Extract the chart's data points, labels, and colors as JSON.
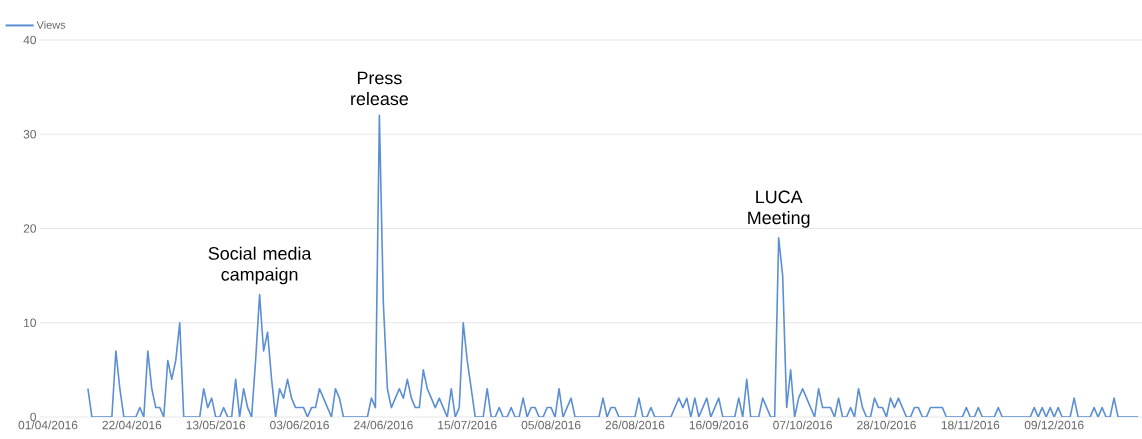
{
  "chart_data": {
    "type": "line",
    "x": [
      "2016-04-11",
      "2016-04-12",
      "2016-04-17",
      "2016-04-18",
      "2016-04-19",
      "2016-04-20",
      "2016-04-23",
      "2016-04-24",
      "2016-04-25",
      "2016-04-26",
      "2016-04-27",
      "2016-04-28",
      "2016-04-29",
      "2016-04-30",
      "2016-05-01",
      "2016-05-02",
      "2016-05-03",
      "2016-05-04",
      "2016-05-05",
      "2016-05-09",
      "2016-05-10",
      "2016-05-11",
      "2016-05-12",
      "2016-05-13",
      "2016-05-14",
      "2016-05-15",
      "2016-05-16",
      "2016-05-17",
      "2016-05-18",
      "2016-05-19",
      "2016-05-20",
      "2016-05-21",
      "2016-05-22",
      "2016-05-23",
      "2016-05-24",
      "2016-05-25",
      "2016-05-26",
      "2016-05-27",
      "2016-05-28",
      "2016-05-29",
      "2016-05-30",
      "2016-05-31",
      "2016-06-01",
      "2016-06-02",
      "2016-06-03",
      "2016-06-04",
      "2016-06-05",
      "2016-06-06",
      "2016-06-07",
      "2016-06-08",
      "2016-06-09",
      "2016-06-10",
      "2016-06-11",
      "2016-06-12",
      "2016-06-13",
      "2016-06-14",
      "2016-06-20",
      "2016-06-21",
      "2016-06-22",
      "2016-06-23",
      "2016-06-24",
      "2016-06-25",
      "2016-06-26",
      "2016-06-27",
      "2016-06-28",
      "2016-06-29",
      "2016-06-30",
      "2016-07-01",
      "2016-07-02",
      "2016-07-03",
      "2016-07-04",
      "2016-07-05",
      "2016-07-06",
      "2016-07-07",
      "2016-07-08",
      "2016-07-09",
      "2016-07-10",
      "2016-07-11",
      "2016-07-12",
      "2016-07-13",
      "2016-07-14",
      "2016-07-15",
      "2016-07-16",
      "2016-07-17",
      "2016-07-19",
      "2016-07-20",
      "2016-07-21",
      "2016-07-22",
      "2016-07-23",
      "2016-07-24",
      "2016-07-25",
      "2016-07-26",
      "2016-07-27",
      "2016-07-28",
      "2016-07-29",
      "2016-07-30",
      "2016-07-31",
      "2016-08-01",
      "2016-08-02",
      "2016-08-03",
      "2016-08-04",
      "2016-08-05",
      "2016-08-06",
      "2016-08-07",
      "2016-08-08",
      "2016-08-10",
      "2016-08-11",
      "2016-08-17",
      "2016-08-18",
      "2016-08-19",
      "2016-08-20",
      "2016-08-21",
      "2016-08-22",
      "2016-08-26",
      "2016-08-27",
      "2016-08-28",
      "2016-08-29",
      "2016-08-30",
      "2016-08-31",
      "2016-09-04",
      "2016-09-05",
      "2016-09-06",
      "2016-09-07",
      "2016-09-08",
      "2016-09-09",
      "2016-09-10",
      "2016-09-11",
      "2016-09-12",
      "2016-09-13",
      "2016-09-14",
      "2016-09-15",
      "2016-09-16",
      "2016-09-17",
      "2016-09-20",
      "2016-09-21",
      "2016-09-22",
      "2016-09-23",
      "2016-09-24",
      "2016-09-26",
      "2016-09-27",
      "2016-09-28",
      "2016-09-29",
      "2016-09-30",
      "2016-10-01",
      "2016-10-02",
      "2016-10-03",
      "2016-10-04",
      "2016-10-05",
      "2016-10-06",
      "2016-10-07",
      "2016-10-08",
      "2016-10-09",
      "2016-10-10",
      "2016-10-11",
      "2016-10-12",
      "2016-10-13",
      "2016-10-14",
      "2016-10-15",
      "2016-10-16",
      "2016-10-17",
      "2016-10-18",
      "2016-10-19",
      "2016-10-20",
      "2016-10-21",
      "2016-10-22",
      "2016-10-23",
      "2016-10-24",
      "2016-10-25",
      "2016-10-26",
      "2016-10-27",
      "2016-10-28",
      "2016-10-29",
      "2016-10-30",
      "2016-10-31",
      "2016-11-01",
      "2016-11-02",
      "2016-11-03",
      "2016-11-04",
      "2016-11-05",
      "2016-11-06",
      "2016-11-07",
      "2016-11-08",
      "2016-11-09",
      "2016-11-10",
      "2016-11-11",
      "2016-11-12",
      "2016-11-16",
      "2016-11-17",
      "2016-11-18",
      "2016-11-19",
      "2016-11-20",
      "2016-11-21",
      "2016-11-24",
      "2016-11-25",
      "2016-11-26",
      "2016-12-03",
      "2016-12-04",
      "2016-12-05",
      "2016-12-06",
      "2016-12-07",
      "2016-12-08",
      "2016-12-09",
      "2016-12-10",
      "2016-12-11",
      "2016-12-13",
      "2016-12-14",
      "2016-12-15",
      "2016-12-18",
      "2016-12-19",
      "2016-12-20",
      "2016-12-21",
      "2016-12-22",
      "2016-12-23",
      "2016-12-24",
      "2016-12-25",
      "2016-12-30"
    ],
    "series": [
      {
        "name": "Views",
        "color": "#5b8fd4",
        "values": [
          3,
          0,
          0,
          7,
          3,
          0,
          0,
          1,
          0,
          7,
          3,
          1,
          1,
          0,
          6,
          4,
          6,
          10,
          0,
          0,
          3,
          1,
          2,
          0,
          0,
          1,
          0,
          0,
          4,
          0,
          3,
          1,
          0,
          6,
          13,
          7,
          9,
          4,
          0,
          3,
          2,
          4,
          2,
          1,
          1,
          1,
          0,
          1,
          1,
          3,
          2,
          1,
          0,
          3,
          2,
          0,
          0,
          2,
          1,
          32,
          12,
          3,
          1,
          2,
          3,
          2,
          4,
          2,
          1,
          1,
          5,
          3,
          2,
          1,
          2,
          1,
          0,
          3,
          0,
          1,
          10,
          6,
          3,
          0,
          0,
          3,
          0,
          0,
          1,
          0,
          0,
          1,
          0,
          0,
          2,
          0,
          1,
          1,
          0,
          0,
          1,
          1,
          0,
          3,
          0,
          2,
          0,
          0,
          2,
          0,
          1,
          1,
          0,
          0,
          2,
          0,
          0,
          1,
          0,
          0,
          1,
          2,
          1,
          2,
          0,
          2,
          0,
          1,
          2,
          0,
          1,
          2,
          0,
          0,
          2,
          0,
          4,
          0,
          0,
          2,
          1,
          0,
          0,
          19,
          15,
          1,
          5,
          0,
          2,
          3,
          2,
          1,
          0,
          3,
          1,
          1,
          1,
          0,
          2,
          0,
          0,
          1,
          0,
          3,
          1,
          0,
          0,
          2,
          1,
          1,
          0,
          2,
          1,
          2,
          1,
          0,
          0,
          1,
          1,
          0,
          0,
          1,
          1,
          1,
          1,
          0,
          0,
          1,
          0,
          0,
          1,
          0,
          0,
          1,
          0,
          0,
          1,
          0,
          1,
          0,
          1,
          0,
          1,
          0,
          0,
          2,
          0,
          0,
          1,
          0,
          1,
          0,
          0,
          2,
          0,
          0
        ]
      }
    ],
    "xlim": [
      "2016-03-30",
      "2016-12-31"
    ],
    "xticks": [
      {
        "value": "2016-04-01",
        "label": "01/04/2016"
      },
      {
        "value": "2016-04-22",
        "label": "22/04/2016"
      },
      {
        "value": "2016-05-13",
        "label": "13/05/2016"
      },
      {
        "value": "2016-06-03",
        "label": "03/06/2016"
      },
      {
        "value": "2016-06-24",
        "label": "24/06/2016"
      },
      {
        "value": "2016-07-15",
        "label": "15/07/2016"
      },
      {
        "value": "2016-08-05",
        "label": "05/08/2016"
      },
      {
        "value": "2016-08-26",
        "label": "26/08/2016"
      },
      {
        "value": "2016-09-16",
        "label": "16/09/2016"
      },
      {
        "value": "2016-10-07",
        "label": "07/10/2016"
      },
      {
        "value": "2016-10-28",
        "label": "28/10/2016"
      },
      {
        "value": "2016-11-18",
        "label": "18/11/2016"
      },
      {
        "value": "2016-12-09",
        "label": "09/12/2016"
      }
    ],
    "ylim": [
      0,
      40
    ],
    "yticks": [
      0,
      10,
      20,
      30,
      40
    ],
    "grid": "y",
    "legend": "top left",
    "annotations": [
      {
        "text": "Social media campaign",
        "x": "2016-05-24",
        "y": 13
      },
      {
        "text": "Press release",
        "x": "2016-06-23",
        "y": 32
      },
      {
        "text": "LUCA Meeting",
        "x": "2016-10-01",
        "y": 19
      }
    ]
  }
}
